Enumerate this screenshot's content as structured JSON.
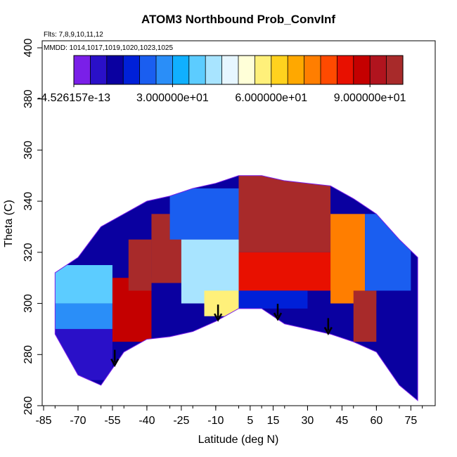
{
  "chart_data": {
    "type": "heatmap",
    "title": "ATOM3 Northbound Prob_ConvInf",
    "flights_note": "Flts: 7,8,9,10,11,12",
    "dates_note": "MMDD: 1014,1017,1019,1020,1023,1025",
    "xlabel": "Latitude (deg N)",
    "ylabel": "Theta (C)",
    "xlim": [
      -85,
      85
    ],
    "ylim": [
      260,
      400
    ],
    "x_tick_labels": [
      "-85",
      "-70",
      "-55",
      "-40",
      "-25",
      "-10",
      "5",
      "15",
      "30",
      "45",
      "60",
      "75"
    ],
    "y_tick_labels": [
      "260",
      "280",
      "300",
      "320",
      "340",
      "360",
      "380",
      "400"
    ],
    "colorbar": {
      "range": [
        0,
        100
      ],
      "tick_labels": [
        "-4.526157e-13",
        "3.000000e+01",
        "6.000000e+01",
        "9.000000e+01"
      ],
      "colors": [
        "#7a1fe8",
        "#2a10c8",
        "#0a00a0",
        "#0020d8",
        "#1a5ef0",
        "#2a8ef8",
        "#10b0ff",
        "#5cccff",
        "#a8e4ff",
        "#e6f6ff",
        "#ffffd8",
        "#fff07a",
        "#ffd21e",
        "#ffa800",
        "#ff7e00",
        "#ff4a00",
        "#e81000",
        "#c40000",
        "#b0141e",
        "#a82a2a"
      ]
    },
    "arrows_at_latitude": [
      -54,
      -9,
      17,
      39
    ],
    "data_extent": {
      "latitudes": [
        -80,
        -70,
        -60,
        -50,
        -40,
        -30,
        -20,
        -10,
        0,
        10,
        20,
        30,
        40,
        50,
        60,
        70,
        78
      ],
      "theta_top": [
        312,
        318,
        330,
        335,
        340,
        342,
        345,
        347,
        350,
        350,
        348,
        347,
        346,
        341,
        335,
        325,
        318
      ],
      "theta_bottom": [
        288,
        272,
        268,
        281,
        286,
        287,
        289,
        293,
        298,
        298,
        292,
        290,
        288,
        285,
        281,
        268,
        262
      ]
    },
    "layers": [
      {
        "theta": [
          270,
          290
        ],
        "lat": [
          -80,
          -55
        ],
        "value": 5
      },
      {
        "theta": [
          290,
          300
        ],
        "lat": [
          -80,
          -55
        ],
        "value": 25
      },
      {
        "theta": [
          300,
          315
        ],
        "lat": [
          -80,
          -55
        ],
        "value": 35
      },
      {
        "theta": [
          285,
          310
        ],
        "lat": [
          -55,
          -38
        ],
        "value": 85
      },
      {
        "theta": [
          305,
          325
        ],
        "lat": [
          -48,
          -38
        ],
        "value": 95
      },
      {
        "theta": [
          308,
          335
        ],
        "lat": [
          -38,
          -25
        ],
        "value": 98
      },
      {
        "theta": [
          325,
          345
        ],
        "lat": [
          -30,
          0
        ],
        "value": 20
      },
      {
        "theta": [
          300,
          325
        ],
        "lat": [
          -25,
          0
        ],
        "value": 40
      },
      {
        "theta": [
          295,
          305
        ],
        "lat": [
          -15,
          5
        ],
        "value": 55
      },
      {
        "theta": [
          320,
          350
        ],
        "lat": [
          0,
          40
        ],
        "value": 95
      },
      {
        "theta": [
          305,
          320
        ],
        "lat": [
          0,
          40
        ],
        "value": 80
      },
      {
        "theta": [
          298,
          305
        ],
        "lat": [
          0,
          30
        ],
        "value": 15
      },
      {
        "theta": [
          300,
          335
        ],
        "lat": [
          40,
          55
        ],
        "value": 70
      },
      {
        "theta": [
          285,
          305
        ],
        "lat": [
          50,
          60
        ],
        "value": 97
      },
      {
        "theta": [
          305,
          335
        ],
        "lat": [
          55,
          75
        ],
        "value": 20
      },
      {
        "theta": [
          270,
          300
        ],
        "lat": [
          60,
          78
        ],
        "value": 10
      }
    ]
  }
}
